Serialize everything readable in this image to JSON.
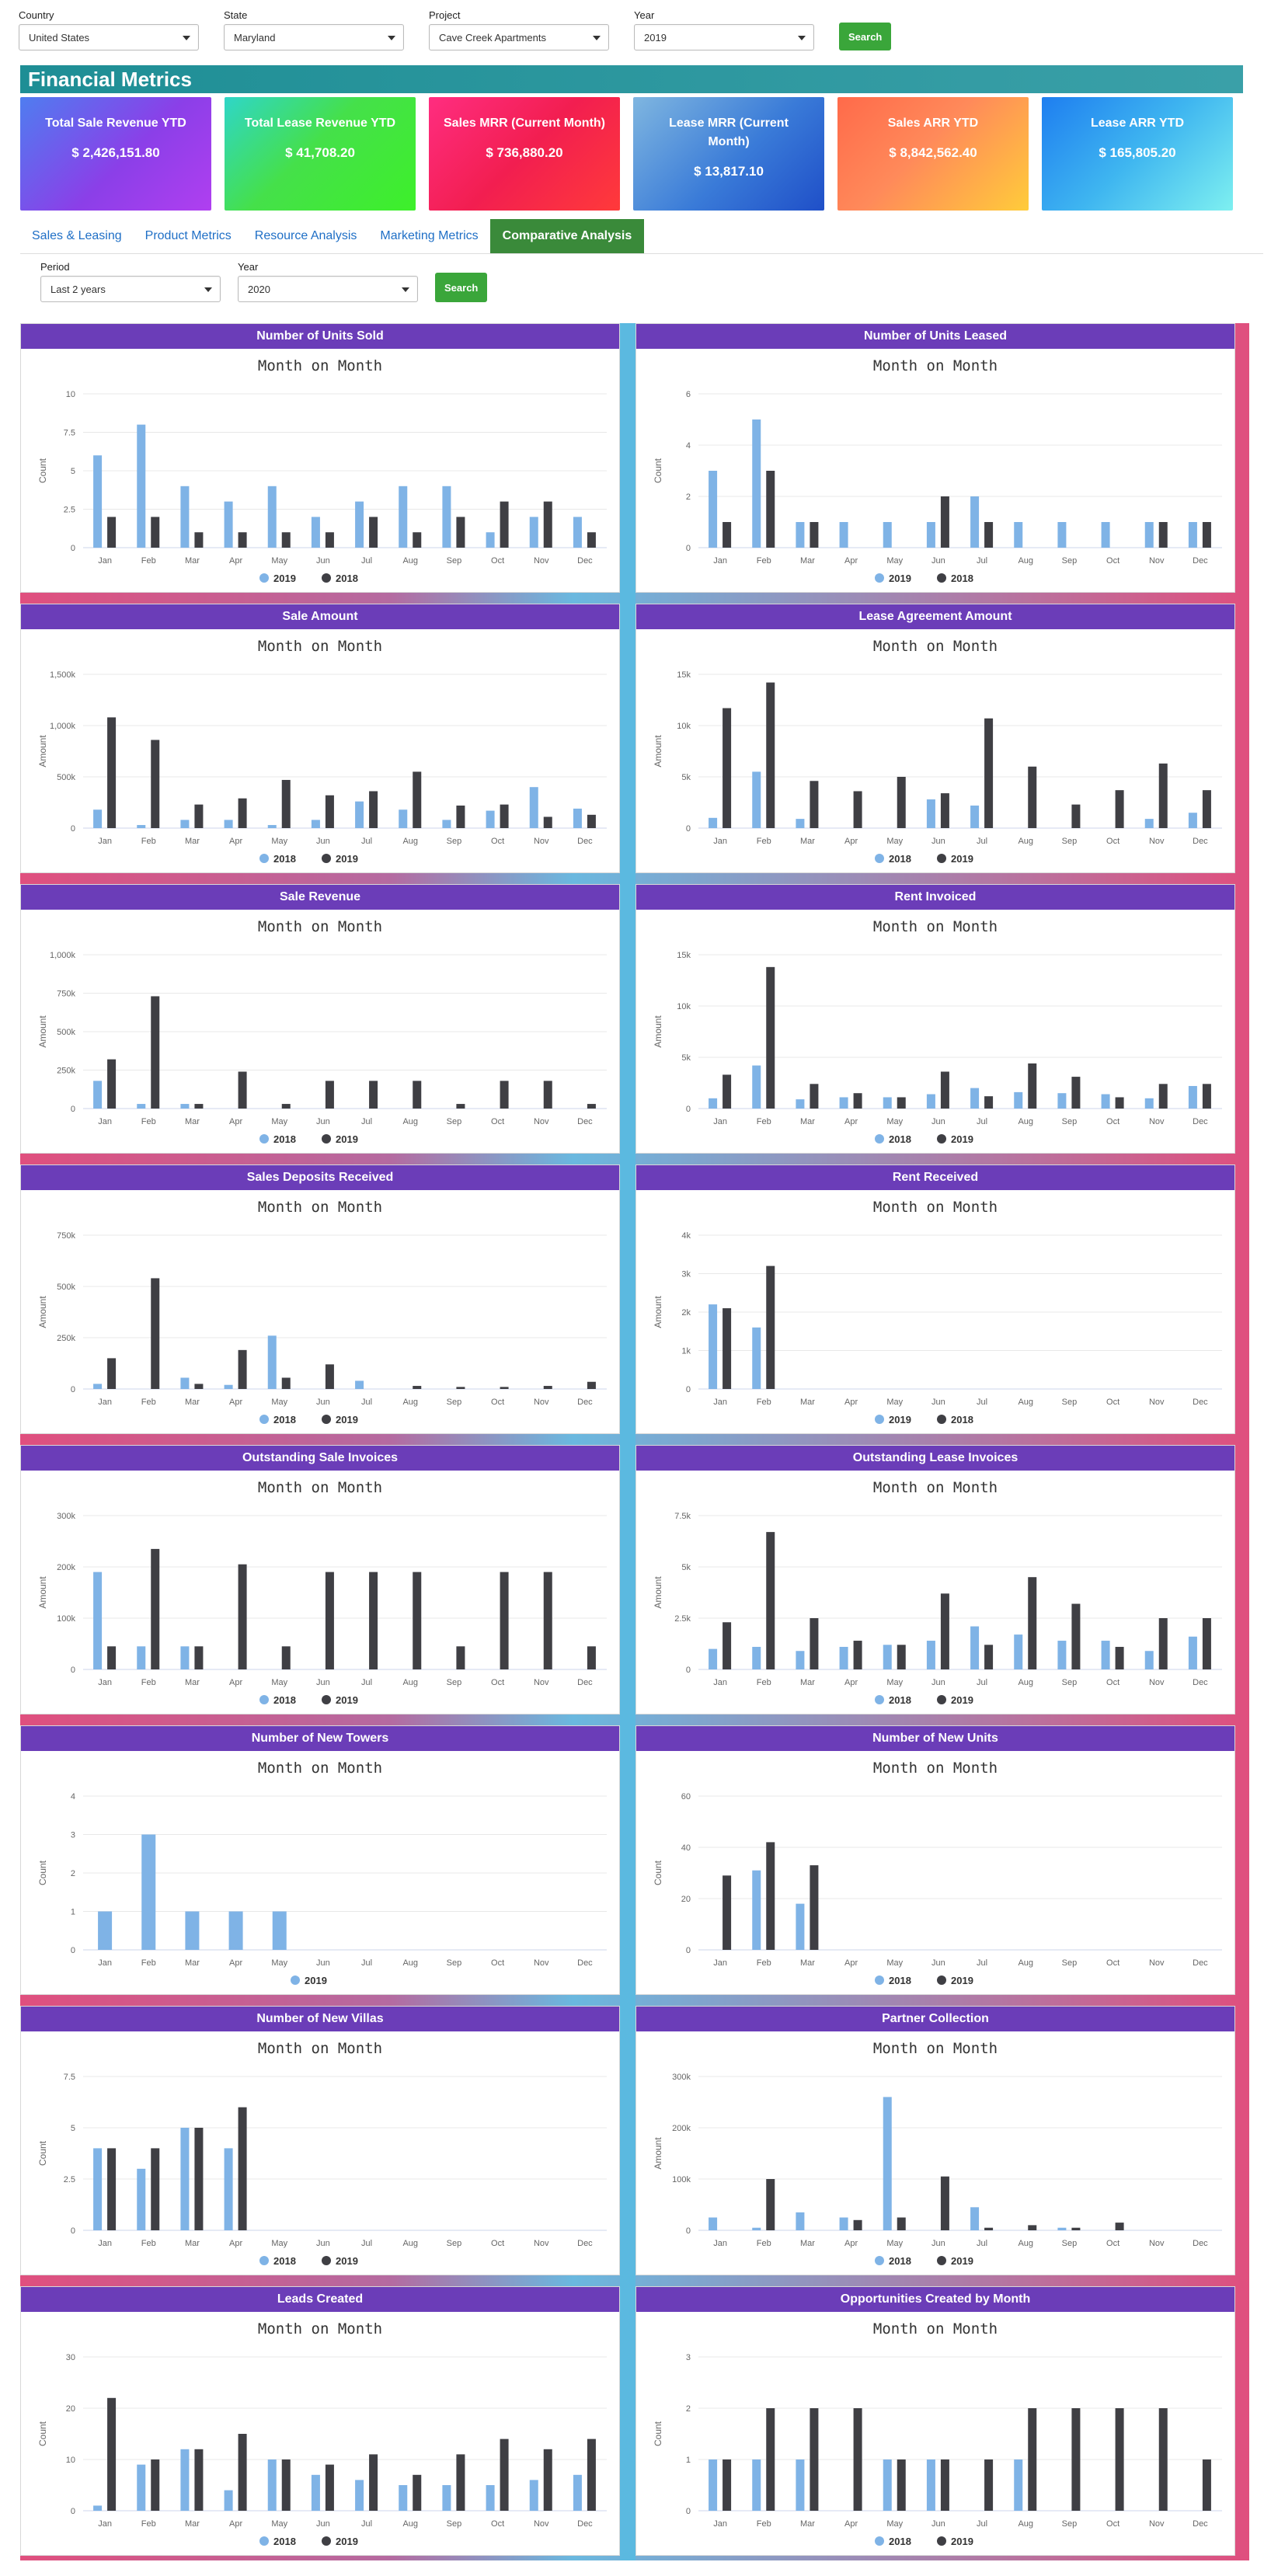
{
  "filters": {
    "country": {
      "label": "Country",
      "value": "United States"
    },
    "state": {
      "label": "State",
      "value": "Maryland"
    },
    "project": {
      "label": "Project",
      "value": "Cave Creek Apartments"
    },
    "year": {
      "label": "Year",
      "value": "2019"
    },
    "search": "Search"
  },
  "banner": "Financial Metrics",
  "cards": [
    {
      "title": "Total Sale Revenue YTD",
      "value": "$ 2,426,151.80"
    },
    {
      "title": "Total Lease Revenue YTD",
      "value": "$ 41,708.20"
    },
    {
      "title": "Sales MRR (Current Month)",
      "value": "$ 736,880.20"
    },
    {
      "title": "Lease MRR (Current Month)",
      "value": "$ 13,817.10"
    },
    {
      "title": "Sales ARR YTD",
      "value": "$ 8,842,562.40"
    },
    {
      "title": "Lease ARR YTD",
      "value": "$ 165,805.20"
    }
  ],
  "tabs": [
    "Sales & Leasing",
    "Product Metrics",
    "Resource Analysis",
    "Marketing Metrics",
    "Comparative Analysis"
  ],
  "filters2": {
    "period": {
      "label": "Period",
      "value": "Last 2 years"
    },
    "year": {
      "label": "Year",
      "value": "2020"
    },
    "search": "Search"
  },
  "colors": {
    "light": "#7fb3e6",
    "dark": "#3f3f44",
    "header": "#6b3db8",
    "banner": "#1e8e95",
    "button": "#3aa63a"
  },
  "months": [
    "Jan",
    "Feb",
    "Mar",
    "Apr",
    "May",
    "Jun",
    "Jul",
    "Aug",
    "Sep",
    "Oct",
    "Nov",
    "Dec"
  ],
  "chart_data": [
    {
      "type": "bar",
      "title": "Number of Units Sold",
      "subtitle": "Month on Month",
      "ylabel": "Count",
      "ylim": [
        0,
        10
      ],
      "ticks": [
        0,
        2.5,
        5,
        7.5,
        10
      ],
      "tick_labels": [
        "0",
        "2.5",
        "5",
        "7.5",
        "10"
      ],
      "series": [
        {
          "name": "2019",
          "color": "light",
          "values": [
            6,
            8,
            4,
            3,
            4,
            2,
            3,
            4,
            4,
            1,
            2,
            2
          ]
        },
        {
          "name": "2018",
          "color": "dark",
          "values": [
            2,
            2,
            1,
            1,
            1,
            1,
            2,
            1,
            2,
            3,
            3,
            1
          ]
        }
      ]
    },
    {
      "type": "bar",
      "title": "Number of Units Leased",
      "subtitle": "Month on Month",
      "ylabel": "Count",
      "ylim": [
        0,
        6
      ],
      "ticks": [
        0,
        2,
        4,
        6
      ],
      "tick_labels": [
        "0",
        "2",
        "4",
        "6"
      ],
      "series": [
        {
          "name": "2019",
          "color": "light",
          "values": [
            3,
            5,
            1,
            1,
            1,
            1,
            2,
            1,
            1,
            1,
            1,
            1
          ]
        },
        {
          "name": "2018",
          "color": "dark",
          "values": [
            1,
            3,
            1,
            0,
            0,
            2,
            1,
            0,
            0,
            0,
            1,
            1
          ]
        }
      ]
    },
    {
      "type": "bar",
      "title": "Sale Amount",
      "subtitle": "Month on Month",
      "ylabel": "Amount",
      "ylim": [
        0,
        1500000
      ],
      "ticks": [
        0,
        500000,
        1000000,
        1500000
      ],
      "tick_labels": [
        "0",
        "500k",
        "1,000k",
        "1,500k"
      ],
      "series": [
        {
          "name": "2018",
          "color": "light",
          "values": [
            180000,
            30000,
            80000,
            80000,
            30000,
            80000,
            260000,
            180000,
            80000,
            170000,
            400000,
            190000
          ]
        },
        {
          "name": "2019",
          "color": "dark",
          "values": [
            1080000,
            860000,
            230000,
            290000,
            470000,
            320000,
            360000,
            550000,
            220000,
            230000,
            110000,
            130000
          ]
        }
      ]
    },
    {
      "type": "bar",
      "title": "Lease Agreement Amount",
      "subtitle": "Month on Month",
      "ylabel": "Amount",
      "ylim": [
        0,
        15000
      ],
      "ticks": [
        0,
        5000,
        10000,
        15000
      ],
      "tick_labels": [
        "0",
        "5k",
        "10k",
        "15k"
      ],
      "series": [
        {
          "name": "2018",
          "color": "light",
          "values": [
            1000,
            5500,
            900,
            0,
            0,
            2800,
            2200,
            0,
            0,
            0,
            900,
            1500
          ]
        },
        {
          "name": "2019",
          "color": "dark",
          "values": [
            11700,
            14200,
            4600,
            3600,
            5000,
            3400,
            10700,
            6000,
            2300,
            3700,
            6300,
            3700
          ]
        }
      ]
    },
    {
      "type": "bar",
      "title": "Sale Revenue",
      "subtitle": "Month on Month",
      "ylabel": "Amount",
      "ylim": [
        0,
        1000000
      ],
      "ticks": [
        0,
        250000,
        500000,
        750000,
        1000000
      ],
      "tick_labels": [
        "0",
        "250k",
        "500k",
        "750k",
        "1,000k"
      ],
      "series": [
        {
          "name": "2018",
          "color": "light",
          "values": [
            180000,
            30000,
            30000,
            0,
            0,
            0,
            0,
            0,
            0,
            0,
            0,
            0
          ]
        },
        {
          "name": "2019",
          "color": "dark",
          "values": [
            320000,
            730000,
            30000,
            240000,
            30000,
            180000,
            180000,
            180000,
            30000,
            180000,
            180000,
            30000
          ]
        }
      ]
    },
    {
      "type": "bar",
      "title": "Rent Invoiced",
      "subtitle": "Month on Month",
      "ylabel": "Amount",
      "ylim": [
        0,
        15000
      ],
      "ticks": [
        0,
        5000,
        10000,
        15000
      ],
      "tick_labels": [
        "0",
        "5k",
        "10k",
        "15k"
      ],
      "series": [
        {
          "name": "2018",
          "color": "light",
          "values": [
            1000,
            4200,
            900,
            1100,
            1100,
            1400,
            2000,
            1600,
            1500,
            1400,
            1000,
            2200
          ]
        },
        {
          "name": "2019",
          "color": "dark",
          "values": [
            3300,
            13800,
            2400,
            1500,
            1100,
            3600,
            1200,
            4400,
            3100,
            1100,
            2400,
            2400
          ]
        }
      ]
    },
    {
      "type": "bar",
      "title": "Sales Deposits Received",
      "subtitle": "Month on Month",
      "ylabel": "Amount",
      "ylim": [
        0,
        750000
      ],
      "ticks": [
        0,
        250000,
        500000,
        750000
      ],
      "tick_labels": [
        "0",
        "250k",
        "500k",
        "750k"
      ],
      "series": [
        {
          "name": "2018",
          "color": "light",
          "values": [
            25000,
            0,
            55000,
            20000,
            260000,
            0,
            40000,
            0,
            0,
            0,
            0,
            0
          ]
        },
        {
          "name": "2019",
          "color": "dark",
          "values": [
            150000,
            540000,
            25000,
            190000,
            55000,
            120000,
            0,
            15000,
            10000,
            10000,
            15000,
            35000
          ]
        }
      ]
    },
    {
      "type": "bar",
      "title": "Rent Received",
      "subtitle": "Month on Month",
      "ylabel": "Amount",
      "ylim": [
        0,
        4000
      ],
      "ticks": [
        0,
        1000,
        2000,
        3000,
        4000
      ],
      "tick_labels": [
        "0",
        "1k",
        "2k",
        "3k",
        "4k"
      ],
      "series": [
        {
          "name": "2019",
          "color": "light",
          "values": [
            2200,
            1600,
            0,
            0,
            0,
            0,
            0,
            0,
            0,
            0,
            0,
            0
          ]
        },
        {
          "name": "2018",
          "color": "dark",
          "values": [
            2100,
            3200,
            0,
            0,
            0,
            0,
            0,
            0,
            0,
            0,
            0,
            0
          ]
        }
      ]
    },
    {
      "type": "bar",
      "title": "Outstanding Sale Invoices",
      "subtitle": "Month on Month",
      "ylabel": "Amount",
      "ylim": [
        0,
        300000
      ],
      "ticks": [
        0,
        100000,
        200000,
        300000
      ],
      "tick_labels": [
        "0",
        "100k",
        "200k",
        "300k"
      ],
      "series": [
        {
          "name": "2018",
          "color": "light",
          "values": [
            190000,
            45000,
            45000,
            0,
            0,
            0,
            0,
            0,
            0,
            0,
            0,
            0
          ]
        },
        {
          "name": "2019",
          "color": "dark",
          "values": [
            45000,
            235000,
            45000,
            205000,
            45000,
            190000,
            190000,
            190000,
            45000,
            190000,
            190000,
            45000
          ]
        }
      ]
    },
    {
      "type": "bar",
      "title": "Outstanding Lease Invoices",
      "subtitle": "Month on Month",
      "ylabel": "Amount",
      "ylim": [
        0,
        7500
      ],
      "ticks": [
        0,
        2500,
        5000,
        7500
      ],
      "tick_labels": [
        "0",
        "2.5k",
        "5k",
        "7.5k"
      ],
      "series": [
        {
          "name": "2018",
          "color": "light",
          "values": [
            1000,
            1100,
            900,
            1100,
            1200,
            1400,
            2100,
            1700,
            1400,
            1400,
            900,
            1600
          ]
        },
        {
          "name": "2019",
          "color": "dark",
          "values": [
            2300,
            6700,
            2500,
            1400,
            1200,
            3700,
            1200,
            4500,
            3200,
            1100,
            2500,
            2500
          ]
        }
      ]
    },
    {
      "type": "bar",
      "title": "Number of New Towers",
      "subtitle": "Month on Month",
      "ylabel": "Count",
      "ylim": [
        0,
        4
      ],
      "ticks": [
        0,
        1,
        2,
        3,
        4
      ],
      "tick_labels": [
        "0",
        "1",
        "2",
        "3",
        "4"
      ],
      "series": [
        {
          "name": "2019",
          "color": "light",
          "values": [
            1,
            3,
            1,
            1,
            1,
            0,
            0,
            0,
            0,
            0,
            0,
            0
          ]
        }
      ]
    },
    {
      "type": "bar",
      "title": "Number of New Units",
      "subtitle": "Month on Month",
      "ylabel": "Count",
      "ylim": [
        0,
        60
      ],
      "ticks": [
        0,
        20,
        40,
        60
      ],
      "tick_labels": [
        "0",
        "20",
        "40",
        "60"
      ],
      "series": [
        {
          "name": "2018",
          "color": "light",
          "values": [
            0,
            31,
            18,
            0,
            0,
            0,
            0,
            0,
            0,
            0,
            0,
            0
          ]
        },
        {
          "name": "2019",
          "color": "dark",
          "values": [
            29,
            42,
            33,
            0,
            0,
            0,
            0,
            0,
            0,
            0,
            0,
            0
          ]
        }
      ]
    },
    {
      "type": "bar",
      "title": "Number of New Villas",
      "subtitle": "Month on Month",
      "ylabel": "Count",
      "ylim": [
        0,
        7.5
      ],
      "ticks": [
        0,
        2.5,
        5,
        7.5
      ],
      "tick_labels": [
        "0",
        "2.5",
        "5",
        "7.5"
      ],
      "series": [
        {
          "name": "2018",
          "color": "light",
          "values": [
            4,
            3,
            5,
            4,
            0,
            0,
            0,
            0,
            0,
            0,
            0,
            0
          ]
        },
        {
          "name": "2019",
          "color": "dark",
          "values": [
            4,
            4,
            5,
            6,
            0,
            0,
            0,
            0,
            0,
            0,
            0,
            0
          ]
        }
      ]
    },
    {
      "type": "bar",
      "title": "Partner Collection",
      "subtitle": "Month on Month",
      "ylabel": "Amount",
      "ylim": [
        0,
        300000
      ],
      "ticks": [
        0,
        100000,
        200000,
        300000
      ],
      "tick_labels": [
        "0",
        "100k",
        "200k",
        "300k"
      ],
      "series": [
        {
          "name": "2018",
          "color": "light",
          "values": [
            25000,
            5000,
            35000,
            25000,
            260000,
            0,
            45000,
            0,
            5000,
            0,
            0,
            0
          ]
        },
        {
          "name": "2019",
          "color": "dark",
          "values": [
            0,
            100000,
            0,
            20000,
            25000,
            105000,
            5000,
            10000,
            5000,
            15000,
            0,
            0
          ]
        }
      ]
    },
    {
      "type": "bar",
      "title": "Leads Created",
      "subtitle": "Month on Month",
      "ylabel": "Count",
      "ylim": [
        0,
        30
      ],
      "ticks": [
        0,
        10,
        20,
        30
      ],
      "tick_labels": [
        "0",
        "10",
        "20",
        "30"
      ],
      "series": [
        {
          "name": "2018",
          "color": "light",
          "values": [
            1,
            9,
            12,
            4,
            10,
            7,
            6,
            5,
            5,
            5,
            6,
            7
          ]
        },
        {
          "name": "2019",
          "color": "dark",
          "values": [
            22,
            10,
            12,
            15,
            10,
            9,
            11,
            7,
            11,
            14,
            12,
            14
          ]
        }
      ]
    },
    {
      "type": "bar",
      "title": "Opportunities Created by Month",
      "subtitle": "Month on Month",
      "ylabel": "Count",
      "ylim": [
        0,
        3
      ],
      "ticks": [
        0,
        1,
        2,
        3
      ],
      "tick_labels": [
        "0",
        "1",
        "2",
        "3"
      ],
      "series": [
        {
          "name": "2018",
          "color": "light",
          "values": [
            1,
            1,
            1,
            0,
            1,
            1,
            0,
            1,
            0,
            0,
            0,
            0
          ]
        },
        {
          "name": "2019",
          "color": "dark",
          "values": [
            1,
            2,
            2,
            2,
            1,
            1,
            1,
            2,
            2,
            2,
            2,
            1
          ]
        }
      ]
    }
  ]
}
